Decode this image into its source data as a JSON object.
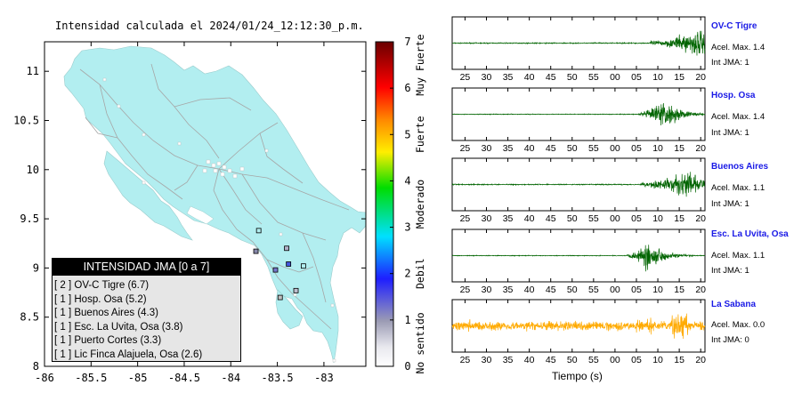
{
  "chart_data": [
    {
      "type": "map",
      "title": "Intensidad calculada el 2024/01/24_12:12:30_p.m.",
      "x_ticks": [
        "-86",
        "-85.5",
        "-85",
        "-84.5",
        "-84",
        "-83.5",
        "-83"
      ],
      "y_ticks": [
        "11",
        "10.5",
        "10",
        "9.5",
        "9",
        "8.5",
        "8"
      ],
      "xlim": [
        -86,
        -82.55
      ],
      "ylim": [
        8,
        11.3
      ],
      "land_color": "#b2eef0",
      "stations": [
        {
          "lon": -83.7,
          "lat": 9.38,
          "intensity": 2,
          "color": "#b2eef0"
        },
        {
          "lon": -83.4,
          "lat": 9.2,
          "intensity": 1,
          "color": "#b0b0c8"
        },
        {
          "lon": -83.38,
          "lat": 9.04,
          "intensity": 4,
          "color": "#4455dd"
        },
        {
          "lon": -83.22,
          "lat": 9.02,
          "intensity": 0,
          "color": "#b2eef0"
        },
        {
          "lon": -83.52,
          "lat": 8.98,
          "intensity": 3,
          "color": "#7777cc"
        },
        {
          "lon": -83.73,
          "lat": 9.17,
          "intensity": 2,
          "color": "#8888aa"
        },
        {
          "lon": -83.3,
          "lat": 8.77,
          "intensity": 1,
          "color": "#c0c0d0"
        },
        {
          "lon": -83.47,
          "lat": 8.7,
          "intensity": 1,
          "color": "#c0c0c0"
        }
      ],
      "legend": {
        "title": "INTENSIDAD JMA [0 a 7]",
        "items": [
          "[ 2 ]  OV-C Tigre (6.7)",
          "[ 1 ]  Hosp. Osa (5.2)",
          "[ 1 ]  Buenos Aires (4.3)",
          "[ 1 ]  Esc. La Uvita, Osa (3.8)",
          "[ 1 ]  Puerto Cortes (3.3)",
          "[ 1 ]  Lic Finca Alajuela, Osa (2.6)"
        ]
      }
    },
    {
      "type": "colorbar",
      "range": [
        0,
        7
      ],
      "ticks": [
        "0",
        "1",
        "2",
        "3",
        "4",
        "5",
        "6",
        "7"
      ],
      "level_labels": [
        "No sentido",
        "Debil",
        "Moderado",
        "Fuerte",
        "Muy Fuerte"
      ],
      "colors": [
        "#ffffff",
        "#9b9bb4",
        "#1e1eff",
        "#00e0ff",
        "#00dd00",
        "#ffee00",
        "#ff8800",
        "#ff0000",
        "#6a0000"
      ]
    },
    {
      "type": "line",
      "xlabel": "Tiempo (s)",
      "x_ticks": [
        "25",
        "30",
        "35",
        "40",
        "45",
        "50",
        "55",
        "00",
        "05",
        "10",
        "15",
        "20"
      ],
      "series": [
        {
          "name": "OV-C Tigre",
          "accel_label": "Acel. Max. 1.4",
          "int_label": "Int JMA: 1",
          "color": "#006400",
          "onset": 8.2,
          "peak": 19.5,
          "noise": 0.03,
          "amp": 0.85
        },
        {
          "name": "Hosp. Osa",
          "accel_label": "Acel. Max. 1.4",
          "int_label": "Int JMA: 1",
          "color": "#006400",
          "onset": 5.5,
          "peak": 11.5,
          "noise": 0.02,
          "amp": 0.85
        },
        {
          "name": "Buenos Aires",
          "accel_label": "Acel. Max. 1.1",
          "int_label": "Int JMA: 1",
          "color": "#006400",
          "onset": 6.0,
          "peak": 17.0,
          "noise": 0.03,
          "amp": 0.85
        },
        {
          "name": "Esc. La Uvita, Osa",
          "accel_label": "Acel. Max. 1.1",
          "int_label": "Int JMA: 1",
          "color": "#006400",
          "onset": 2.8,
          "peak": 7.5,
          "noise": 0.02,
          "amp": 0.85
        },
        {
          "name": "La Sabana",
          "accel_label": "Acel. Max. 0.0",
          "int_label": "Int JMA: 0",
          "color": "#ffaa00",
          "onset": -38,
          "peak": 15.0,
          "noise": 0.25,
          "amp": 0.75
        }
      ]
    }
  ]
}
